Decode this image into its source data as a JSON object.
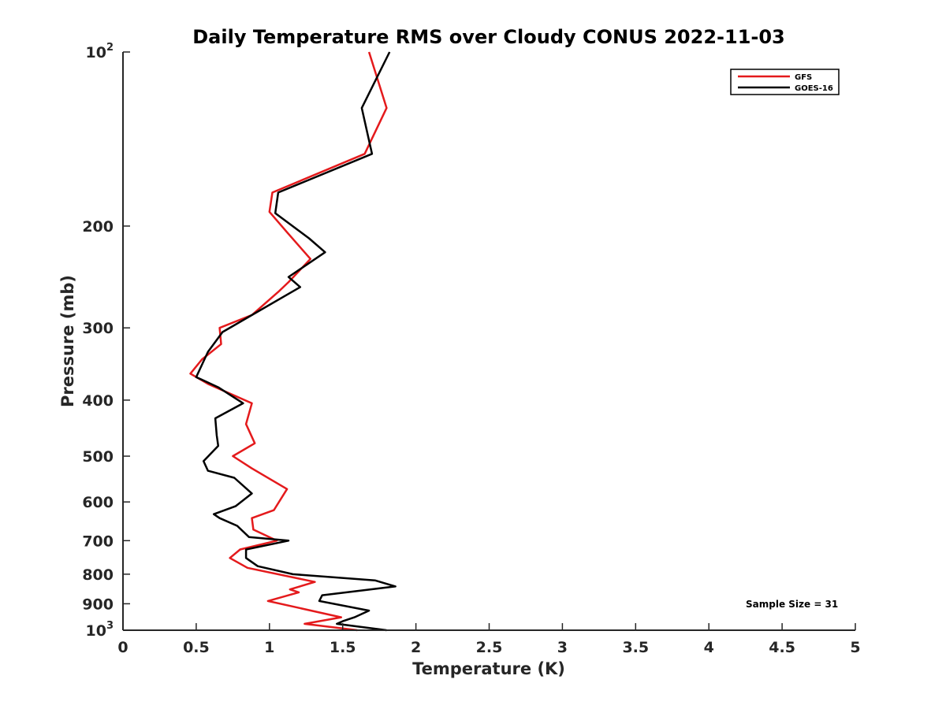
{
  "chart_data": {
    "type": "line",
    "title": "Daily Temperature RMS over Cloudy CONUS 2022-11-03",
    "xlabel": "Temperature (K)",
    "ylabel": "Pressure (mb)",
    "xlim": [
      0,
      5
    ],
    "ylim": [
      1000,
      100
    ],
    "yscale": "log",
    "y_reversed": true,
    "grid": false,
    "legend_position": "top-right",
    "x_ticks": [
      0,
      0.5,
      1,
      1.5,
      2,
      2.5,
      3,
      3.5,
      4,
      4.5,
      5
    ],
    "x_tick_labels": [
      "0",
      "0.5",
      "1",
      "1.5",
      "2",
      "2.5",
      "3",
      "3.5",
      "4",
      "4.5",
      "5"
    ],
    "y_ticks": [
      {
        "value": 100,
        "label_base": "10",
        "label_exp": "2"
      },
      {
        "value": 200,
        "label_base": "200",
        "label_exp": ""
      },
      {
        "value": 300,
        "label_base": "300",
        "label_exp": ""
      },
      {
        "value": 400,
        "label_base": "400",
        "label_exp": ""
      },
      {
        "value": 500,
        "label_base": "500",
        "label_exp": ""
      },
      {
        "value": 600,
        "label_base": "600",
        "label_exp": ""
      },
      {
        "value": 700,
        "label_base": "700",
        "label_exp": ""
      },
      {
        "value": 800,
        "label_base": "800",
        "label_exp": ""
      },
      {
        "value": 900,
        "label_base": "900",
        "label_exp": ""
      },
      {
        "value": 1000,
        "label_base": "10",
        "label_exp": "3"
      }
    ],
    "series": [
      {
        "name": "GFS",
        "color": "#e41a1c",
        "points": [
          [
            1.68,
            100
          ],
          [
            1.8,
            125
          ],
          [
            1.65,
            150
          ],
          [
            1.02,
            175
          ],
          [
            1.0,
            189
          ],
          [
            1.12,
            205
          ],
          [
            1.28,
            228
          ],
          [
            1.13,
            250
          ],
          [
            1.06,
            260
          ],
          [
            0.88,
            285
          ],
          [
            0.66,
            300
          ],
          [
            0.67,
            320
          ],
          [
            0.54,
            340
          ],
          [
            0.46,
            360
          ],
          [
            0.58,
            375
          ],
          [
            0.88,
            405
          ],
          [
            0.84,
            440
          ],
          [
            0.9,
            475
          ],
          [
            0.75,
            500
          ],
          [
            0.88,
            525
          ],
          [
            1.12,
            570
          ],
          [
            1.03,
            620
          ],
          [
            0.88,
            640
          ],
          [
            0.89,
            670
          ],
          [
            1.05,
            700
          ],
          [
            0.8,
            725
          ],
          [
            0.73,
            750
          ],
          [
            0.85,
            780
          ],
          [
            1.31,
            825
          ],
          [
            1.14,
            850
          ],
          [
            1.2,
            860
          ],
          [
            0.99,
            890
          ],
          [
            1.49,
            950
          ],
          [
            1.24,
            975
          ],
          [
            1.6,
            1000
          ]
        ]
      },
      {
        "name": "GOES-16",
        "color": "#000000",
        "points": [
          [
            1.82,
            100
          ],
          [
            1.63,
            125
          ],
          [
            1.7,
            150
          ],
          [
            1.06,
            175
          ],
          [
            1.04,
            190
          ],
          [
            1.27,
            210
          ],
          [
            1.38,
            222
          ],
          [
            1.13,
            245
          ],
          [
            1.21,
            255
          ],
          [
            0.68,
            305
          ],
          [
            0.58,
            330
          ],
          [
            0.5,
            365
          ],
          [
            0.65,
            380
          ],
          [
            0.82,
            405
          ],
          [
            0.63,
            430
          ],
          [
            0.64,
            460
          ],
          [
            0.65,
            480
          ],
          [
            0.55,
            510
          ],
          [
            0.58,
            530
          ],
          [
            0.76,
            545
          ],
          [
            0.88,
            580
          ],
          [
            0.77,
            610
          ],
          [
            0.62,
            630
          ],
          [
            0.66,
            640
          ],
          [
            0.78,
            660
          ],
          [
            0.86,
            690
          ],
          [
            1.13,
            700
          ],
          [
            0.84,
            725
          ],
          [
            0.84,
            750
          ],
          [
            0.92,
            775
          ],
          [
            1.16,
            800
          ],
          [
            1.72,
            820
          ],
          [
            1.86,
            840
          ],
          [
            1.36,
            870
          ],
          [
            1.34,
            890
          ],
          [
            1.68,
            925
          ],
          [
            1.58,
            950
          ],
          [
            1.5,
            965
          ],
          [
            1.46,
            975
          ],
          [
            1.8,
            1000
          ]
        ]
      }
    ],
    "annotations": [
      {
        "text": "Sample Size = 31",
        "position": "bottom-right"
      }
    ]
  }
}
